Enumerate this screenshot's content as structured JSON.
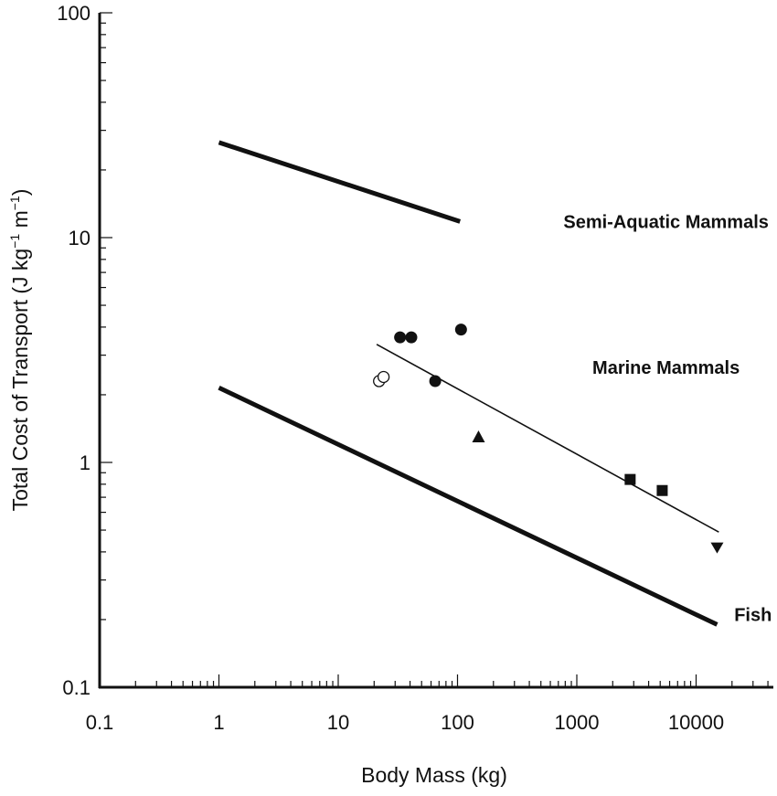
{
  "chart_data": {
    "type": "scatter",
    "title": "",
    "xlabel": "Body Mass (kg)",
    "ylabel": "Total Cost of Transport (J kg",
    "ylabel_sup1": "−1",
    "ylabel_mid": " m",
    "ylabel_sup2": "−1",
    "ylabel_close": ")",
    "x_scale": "log",
    "y_scale": "log",
    "xlim": [
      0.1,
      50000
    ],
    "ylim": [
      0.1,
      100
    ],
    "x_ticks": [
      {
        "value": 0.1,
        "label": "0.1"
      },
      {
        "value": 1,
        "label": "1"
      },
      {
        "value": 10,
        "label": "10"
      },
      {
        "value": 100,
        "label": "100"
      },
      {
        "value": 1000,
        "label": "1000"
      },
      {
        "value": 10000,
        "label": "10000"
      }
    ],
    "y_ticks": [
      {
        "value": 0.1,
        "label": "0.1"
      },
      {
        "value": 1,
        "label": "1"
      },
      {
        "value": 10,
        "label": "10"
      },
      {
        "value": 100,
        "label": "100"
      }
    ],
    "grid": false,
    "lines": [
      {
        "name": "Semi-Aquatic Mammals",
        "points": [
          [
            1,
            26.5
          ],
          [
            105,
            11.8
          ]
        ],
        "width": "thick"
      },
      {
        "name": "Marine Mammals",
        "points": [
          [
            21,
            3.35
          ],
          [
            15500,
            0.49
          ]
        ],
        "width": "thin"
      },
      {
        "name": "Fish",
        "points": [
          [
            1,
            2.15
          ],
          [
            15000,
            0.19
          ]
        ],
        "width": "thick"
      }
    ],
    "series": [
      {
        "marker": "filled-circle",
        "points": [
          [
            33,
            3.6
          ],
          [
            41,
            3.6
          ],
          [
            107,
            3.9
          ],
          [
            65,
            2.3
          ]
        ]
      },
      {
        "marker": "open-circle",
        "points": [
          [
            22,
            2.3
          ],
          [
            24,
            2.4
          ]
        ]
      },
      {
        "marker": "filled-triangle-up",
        "points": [
          [
            150,
            1.3
          ]
        ]
      },
      {
        "marker": "filled-square",
        "points": [
          [
            2800,
            0.84
          ],
          [
            5200,
            0.75
          ]
        ]
      },
      {
        "marker": "filled-triangle-down",
        "points": [
          [
            15000,
            0.42
          ]
        ]
      }
    ],
    "annotations": [
      {
        "text": "Semi-Aquatic Mammals",
        "x": 5600,
        "y": 11.8
      },
      {
        "text": "Marine Mammals",
        "x": 5600,
        "y": 2.65
      },
      {
        "text": "Fish",
        "x": 30000,
        "y": 0.21
      }
    ]
  }
}
